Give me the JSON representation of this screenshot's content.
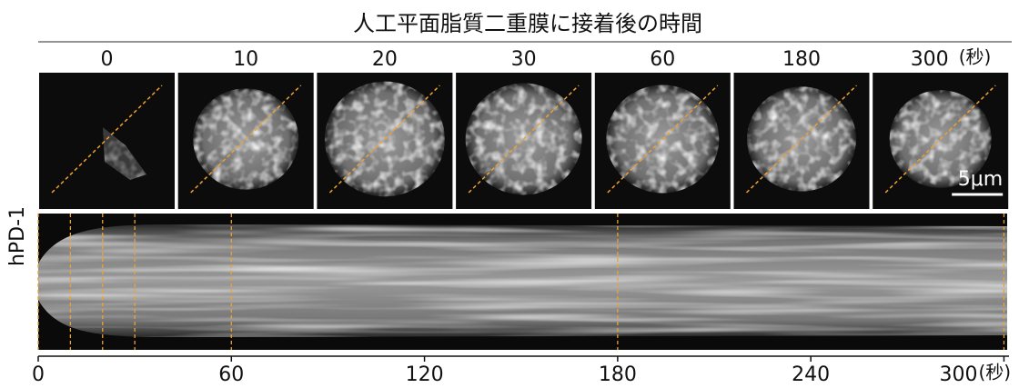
{
  "title": "人工平面脂質二重膜に接着後の時間",
  "frames": [
    0,
    10,
    20,
    30,
    60,
    180,
    300
  ],
  "unit": "(秒)",
  "channel": "hPD-1",
  "scale_bar": "5μm",
  "kymograph": {
    "xlim": [
      0,
      301
    ],
    "xticks": [
      0,
      60,
      120,
      180,
      240,
      300
    ]
  }
}
